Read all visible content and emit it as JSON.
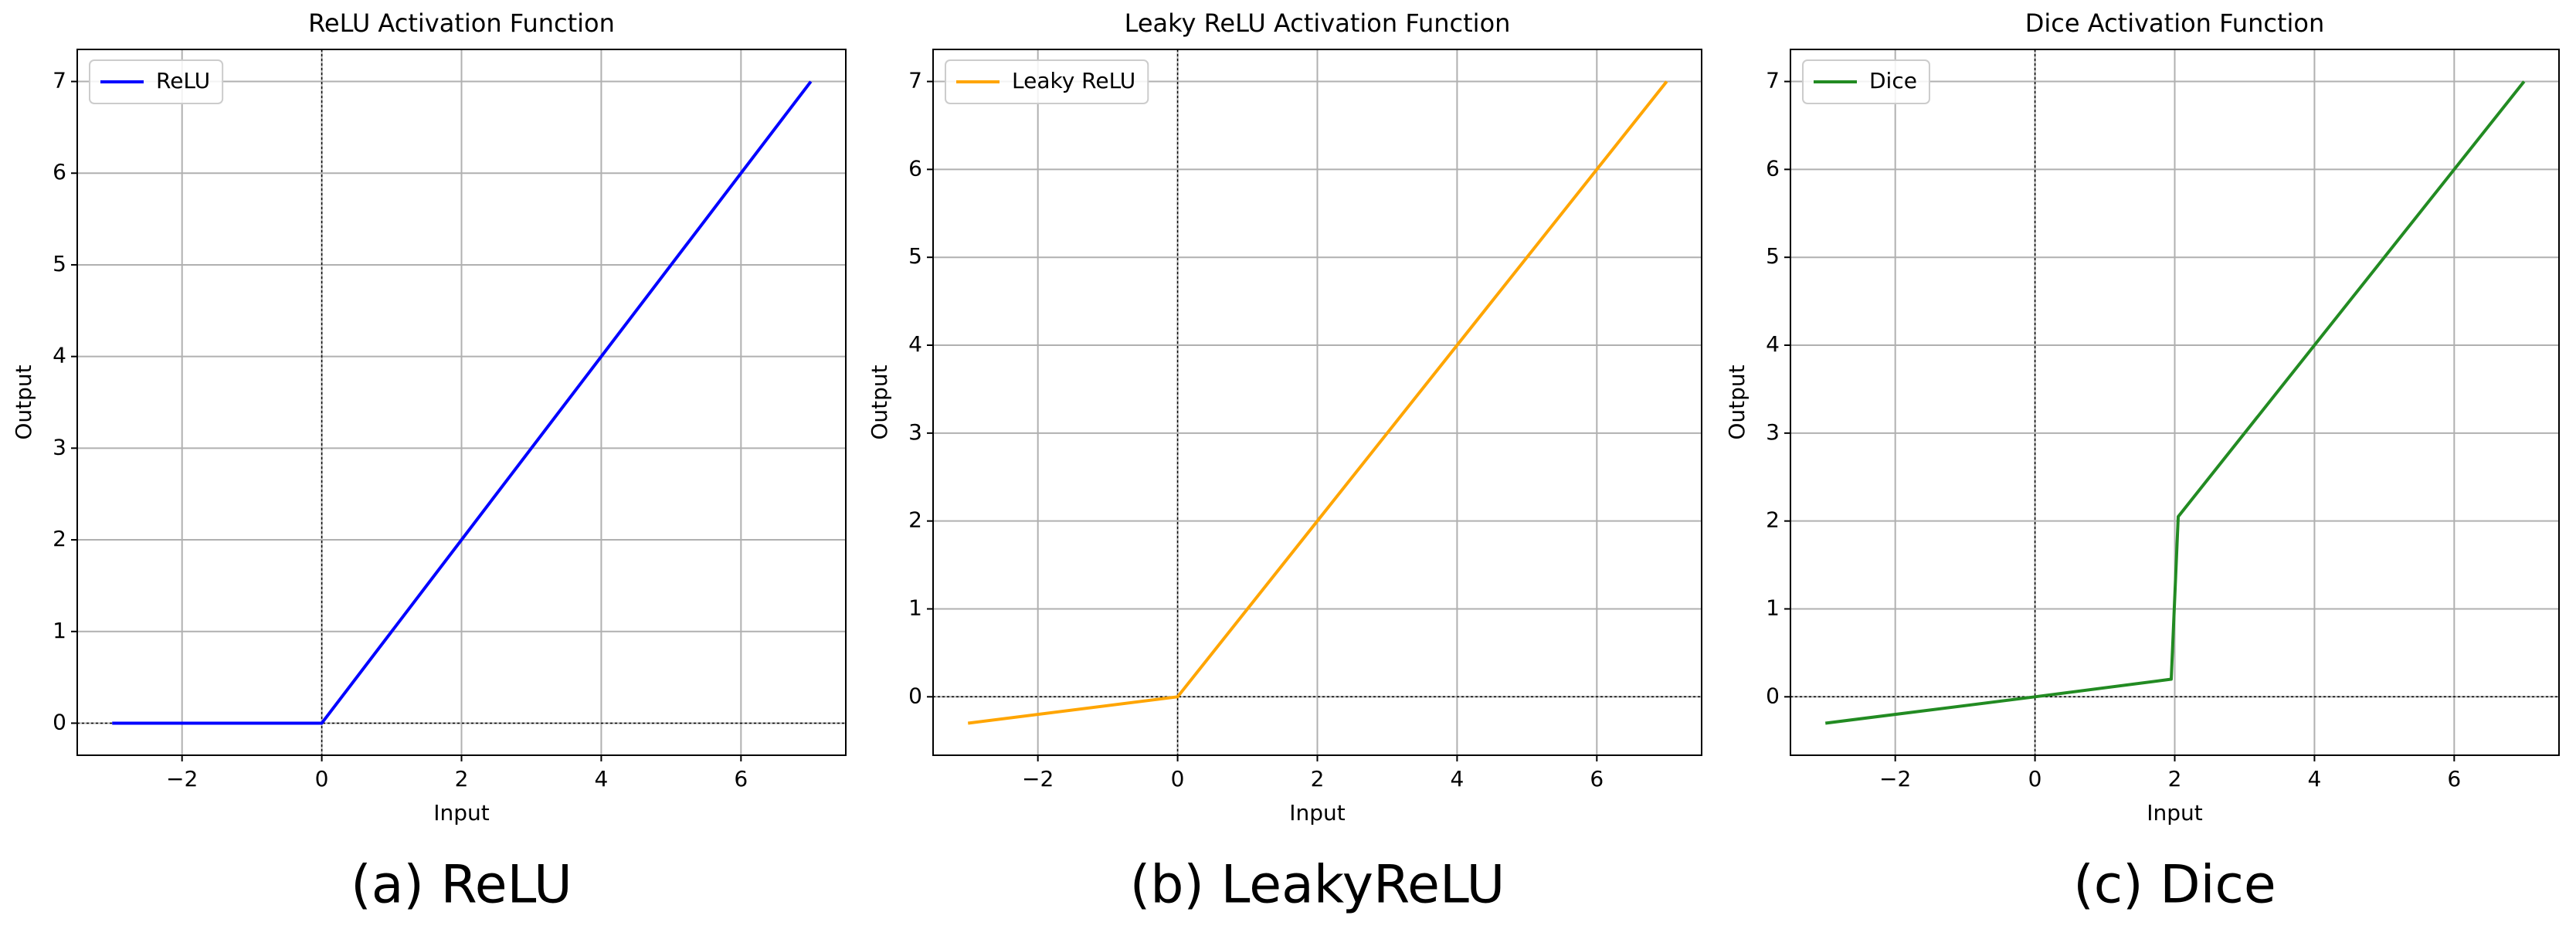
{
  "chart_data": [
    {
      "type": "line",
      "title": "ReLU Activation Function",
      "xlabel": "Input",
      "ylabel": "Output",
      "caption": "(a) ReLU",
      "x": [
        -3,
        0,
        7
      ],
      "series": [
        {
          "name": "ReLU",
          "color": "#0000ff",
          "values": [
            0,
            0,
            7
          ]
        }
      ],
      "xlim": [
        -3.5,
        7.5
      ],
      "ylim": [
        -0.35,
        7.35
      ],
      "xticks": [
        {
          "value": -2,
          "label": "−2"
        },
        0,
        2,
        4,
        6
      ],
      "yticks": [
        0,
        1,
        2,
        3,
        4,
        5,
        6,
        7
      ],
      "grid": true,
      "legend": "upper left",
      "hlines": [
        0
      ],
      "vlines": [
        0
      ]
    },
    {
      "type": "line",
      "title": "Leaky ReLU Activation Function",
      "xlabel": "Input",
      "ylabel": "Output",
      "caption": "(b) LeakyReLU",
      "x": [
        -3,
        0,
        7
      ],
      "series": [
        {
          "name": "Leaky ReLU",
          "color": "#ffa500",
          "values": [
            -0.3,
            0,
            7
          ]
        }
      ],
      "xlim": [
        -3.5,
        7.5
      ],
      "ylim": [
        -0.665,
        7.365
      ],
      "xticks": [
        {
          "value": -2,
          "label": "−2"
        },
        0,
        2,
        4,
        6
      ],
      "yticks": [
        0,
        1,
        2,
        3,
        4,
        5,
        6,
        7
      ],
      "grid": true,
      "legend": "upper left",
      "hlines": [
        0
      ],
      "vlines": [
        0
      ]
    },
    {
      "type": "line",
      "title": "Dice Activation Function",
      "xlabel": "Input",
      "ylabel": "Output",
      "caption": "(c) Dice",
      "x": [
        -3,
        0,
        1.95,
        2.05,
        7
      ],
      "series": [
        {
          "name": "Dice",
          "color": "#228b22",
          "values": [
            -0.3,
            0,
            0.2,
            2.05,
            7
          ]
        }
      ],
      "xlim": [
        -3.5,
        7.5
      ],
      "ylim": [
        -0.665,
        7.365
      ],
      "xticks": [
        {
          "value": -2,
          "label": "−2"
        },
        0,
        2,
        4,
        6
      ],
      "yticks": [
        0,
        1,
        2,
        3,
        4,
        5,
        6,
        7
      ],
      "grid": true,
      "legend": "upper left",
      "hlines": [
        0
      ],
      "vlines": [
        0
      ]
    }
  ]
}
